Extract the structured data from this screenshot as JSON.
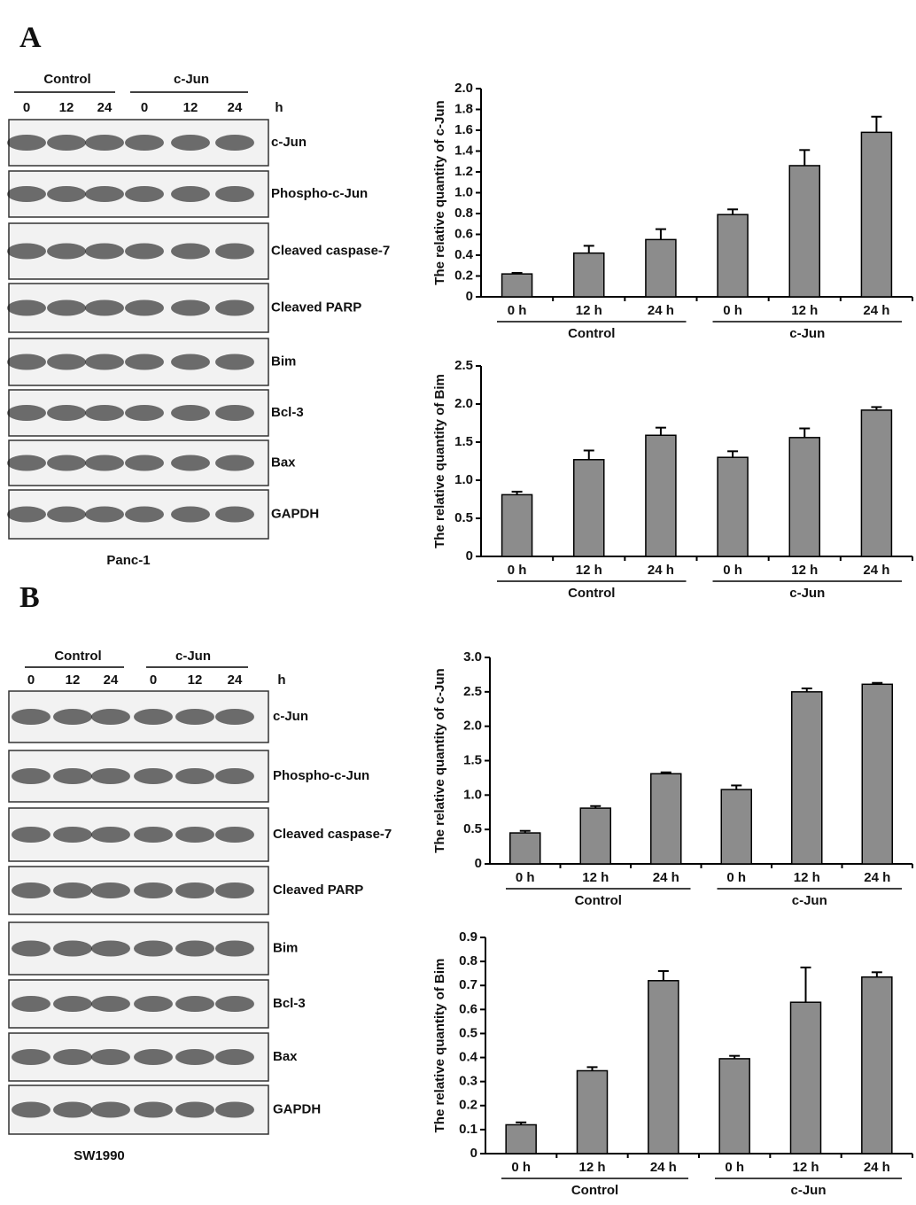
{
  "panels": [
    {
      "letter": "A",
      "groups": [
        "Control",
        "c-Jun"
      ],
      "lanes": [
        "0",
        "12",
        "24",
        "0",
        "12",
        "24"
      ],
      "unit": "h",
      "proteins": [
        "c-Jun",
        "Phospho-c-Jun",
        "Cleaved caspase-7",
        "Cleaved PARP",
        "Bim",
        "Bcl-3",
        "Bax",
        "GAPDH"
      ],
      "cell_line": "Panc-1"
    },
    {
      "letter": "B",
      "groups": [
        "Control",
        "c-Jun"
      ],
      "lanes": [
        "0",
        "12",
        "24",
        "0",
        "12",
        "24"
      ],
      "unit": "h",
      "proteins": [
        "c-Jun",
        "Phospho-c-Jun",
        "Cleaved caspase-7",
        "Cleaved PARP",
        "Bim",
        "Bcl-3",
        "Bax",
        "GAPDH"
      ],
      "cell_line": "SW1990"
    }
  ],
  "chart_data": [
    {
      "type": "bar",
      "y_label": "The relative quantity of c-Jun",
      "color": "#8c8c8c",
      "categories": [
        "0 h",
        "12 h",
        "24 h",
        "0 h",
        "12 h",
        "24 h"
      ],
      "groups": [
        "Control",
        "c-Jun"
      ],
      "values": [
        0.22,
        0.42,
        0.55,
        0.79,
        1.26,
        1.58
      ],
      "errors": [
        0.01,
        0.07,
        0.1,
        0.05,
        0.15,
        0.15
      ],
      "ylim": [
        0,
        2
      ],
      "yticks": [
        0,
        0.2,
        0.4,
        0.6,
        0.8,
        {
          "value": 1,
          "label": "1.0"
        },
        1.2,
        1.4,
        1.6,
        1.8,
        {
          "value": 2,
          "label": "2.0"
        }
      ]
    },
    {
      "type": "bar",
      "y_label": "The relative quantity of Bim",
      "color": "#8c8c8c",
      "categories": [
        "0 h",
        "12 h",
        "24 h",
        "0 h",
        "12 h",
        "24 h"
      ],
      "groups": [
        "Control",
        "c-Jun"
      ],
      "values": [
        0.81,
        1.27,
        1.59,
        1.3,
        1.56,
        1.92
      ],
      "errors": [
        0.04,
        0.12,
        0.1,
        0.08,
        0.12,
        0.04
      ],
      "ylim": [
        0,
        2.5
      ],
      "yticks": [
        0,
        0.5,
        {
          "value": 1,
          "label": "1.0"
        },
        1.5,
        {
          "value": 2,
          "label": "2.0"
        },
        2.5
      ]
    },
    {
      "type": "bar",
      "y_label": "The relative quantity of c-Jun",
      "color": "#8c8c8c",
      "categories": [
        "0 h",
        "12 h",
        "24 h",
        "0 h",
        "12 h",
        "24 h"
      ],
      "groups": [
        "Control",
        "c-Jun"
      ],
      "values": [
        0.45,
        0.81,
        1.31,
        1.08,
        2.5,
        2.61
      ],
      "errors": [
        0.03,
        0.03,
        0.02,
        0.06,
        0.05,
        0.02
      ],
      "ylim": [
        0,
        3
      ],
      "yticks": [
        0,
        0.5,
        {
          "value": 1,
          "label": "1.0"
        },
        1.5,
        {
          "value": 2,
          "label": "2.0"
        },
        2.5,
        {
          "value": 3,
          "label": "3.0"
        }
      ]
    },
    {
      "type": "bar",
      "y_label": "The relative quantity of Bim",
      "color": "#8c8c8c",
      "categories": [
        "0 h",
        "12 h",
        "24 h",
        "0 h",
        "12 h",
        "24 h"
      ],
      "groups": [
        "Control",
        "c-Jun"
      ],
      "values": [
        0.12,
        0.345,
        0.72,
        0.395,
        0.63,
        0.735
      ],
      "errors": [
        0.01,
        0.015,
        0.04,
        0.012,
        0.145,
        0.02
      ],
      "ylim": [
        0,
        0.9
      ],
      "yticks": [
        0,
        0.1,
        0.2,
        0.3,
        0.4,
        0.5,
        0.6,
        0.7,
        0.8,
        0.9
      ]
    }
  ]
}
